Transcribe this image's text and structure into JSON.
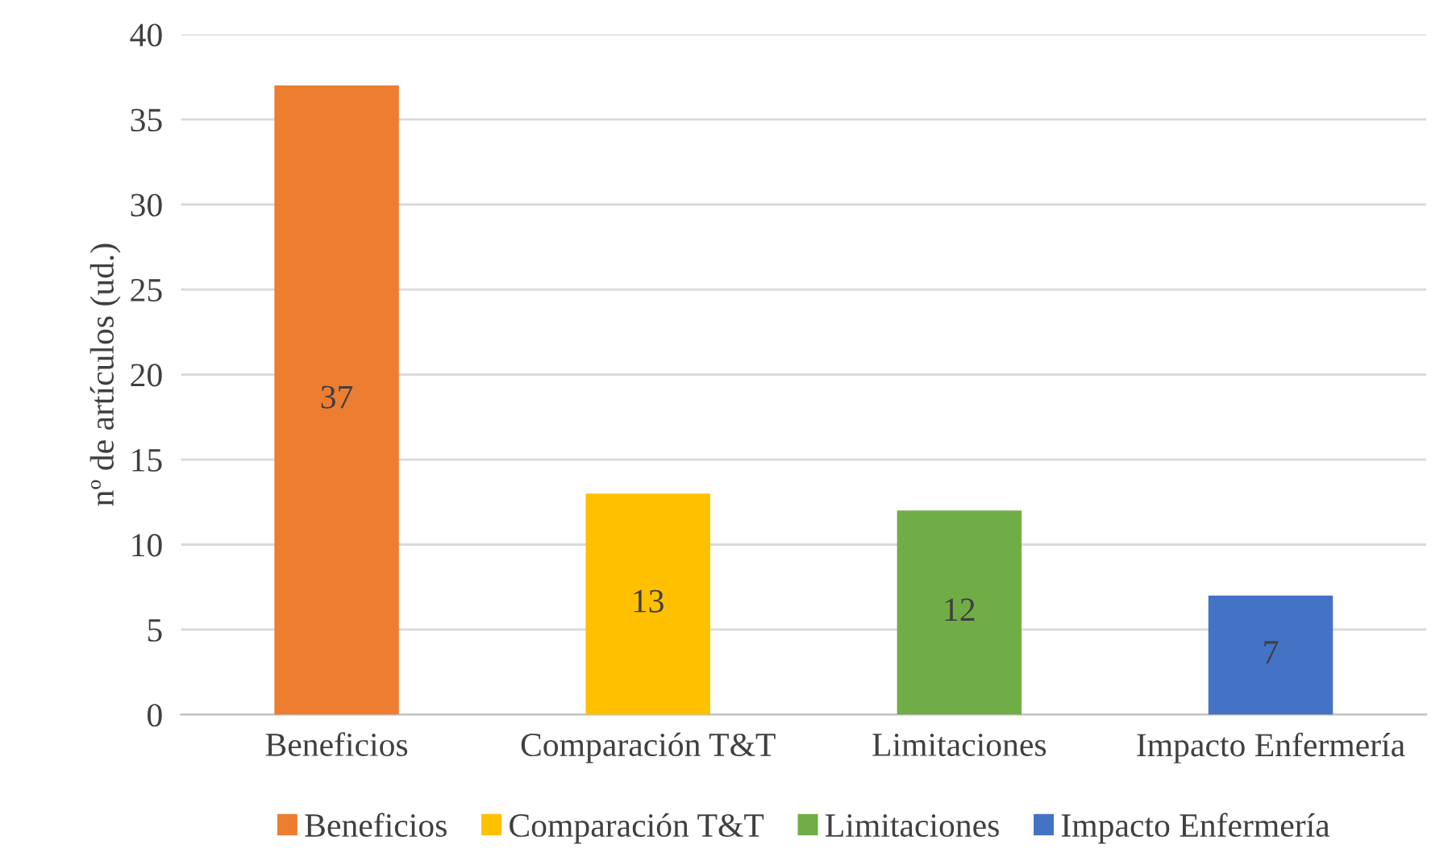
{
  "chart_data": {
    "type": "bar",
    "ylabel": "nº de artículos (ud.)",
    "categories": [
      "Beneficios",
      "Comparación T&T",
      "Limitaciones",
      "Impacto Enfermería"
    ],
    "series": [
      {
        "name": "Beneficios",
        "color": "#ed7d31",
        "values": [
          37,
          null,
          null,
          null
        ]
      },
      {
        "name": "Comparación T&T",
        "color": "#ffc000",
        "values": [
          null,
          13,
          null,
          null
        ]
      },
      {
        "name": "Limitaciones",
        "color": "#70ad47",
        "values": [
          null,
          null,
          12,
          null
        ]
      },
      {
        "name": "Impacto Enfermería",
        "color": "#4472c4",
        "values": [
          null,
          null,
          null,
          7
        ]
      }
    ],
    "ylim": [
      0,
      40
    ],
    "yticks": [
      0,
      5,
      10,
      15,
      20,
      25,
      30,
      35,
      40
    ],
    "grid": "y",
    "legend": "bottom",
    "data_labels": true
  }
}
